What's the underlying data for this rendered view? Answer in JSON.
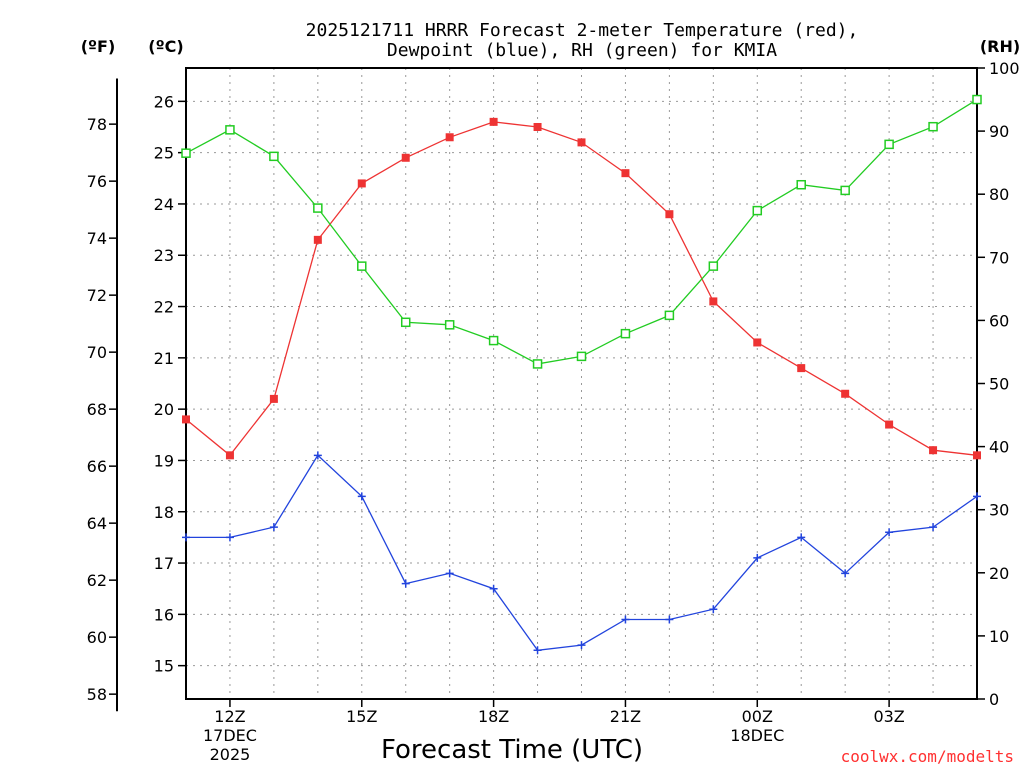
{
  "chart_data": {
    "type": "line",
    "title_line1": "2025121711 HRRR Forecast 2-meter Temperature (red),",
    "title_line2": "Dewpoint (blue), RH (green) for KMIA",
    "xlabel": "Forecast Time (UTC)",
    "credit": "coolwx.com/modelts",
    "left_axes": {
      "fahrenheit": {
        "unit_label": "(ºF)",
        "ticks": [
          58,
          60,
          62,
          64,
          66,
          68,
          70,
          72,
          74,
          76,
          78
        ]
      },
      "celsius": {
        "unit_label": "(ºC)",
        "ticks": [
          15,
          16,
          17,
          18,
          19,
          20,
          21,
          22,
          23,
          24,
          25,
          26
        ],
        "ylim": [
          14.35,
          26.65
        ]
      }
    },
    "right_axis": {
      "unit_label": "(RH)",
      "ticks": [
        0,
        10,
        20,
        30,
        40,
        50,
        60,
        70,
        80,
        90,
        100
      ],
      "ylim": [
        0,
        100
      ]
    },
    "x_hours": [
      11,
      12,
      13,
      14,
      15,
      16,
      17,
      18,
      19,
      20,
      21,
      22,
      23,
      24,
      25,
      26,
      27,
      28,
      29
    ],
    "x_range": [
      11,
      29
    ],
    "x_ticks": [
      {
        "hour": 12,
        "lines": [
          "12Z",
          "17DEC",
          "2025"
        ]
      },
      {
        "hour": 15,
        "lines": [
          "15Z"
        ]
      },
      {
        "hour": 18,
        "lines": [
          "18Z"
        ]
      },
      {
        "hour": 21,
        "lines": [
          "21Z"
        ]
      },
      {
        "hour": 24,
        "lines": [
          "00Z",
          "18DEC"
        ]
      },
      {
        "hour": 27,
        "lines": [
          "03Z"
        ]
      }
    ],
    "series": [
      {
        "name": "Temperature",
        "units": "C",
        "color": "#ee3333",
        "marker": "filled-square",
        "values": [
          19.8,
          19.1,
          20.2,
          23.3,
          24.4,
          24.9,
          25.3,
          25.6,
          25.5,
          25.2,
          24.6,
          23.8,
          22.1,
          21.3,
          20.8,
          20.3,
          19.7,
          19.2,
          19.1
        ]
      },
      {
        "name": "Dewpoint",
        "units": "C",
        "color": "#2244dd",
        "marker": "plus",
        "values": [
          17.5,
          17.5,
          17.7,
          19.1,
          18.3,
          16.6,
          16.8,
          16.5,
          15.3,
          15.4,
          15.9,
          15.9,
          16.1,
          17.1,
          17.5,
          16.8,
          17.6,
          17.7,
          18.3
        ]
      },
      {
        "name": "RH",
        "units": "%",
        "color": "#22cc22",
        "marker": "open-square",
        "values": [
          86.5,
          90.2,
          86.0,
          77.8,
          68.6,
          59.7,
          59.3,
          56.8,
          53.1,
          54.3,
          57.9,
          60.8,
          68.6,
          77.4,
          81.5,
          80.6,
          87.9,
          90.7,
          95.0
        ]
      }
    ]
  }
}
